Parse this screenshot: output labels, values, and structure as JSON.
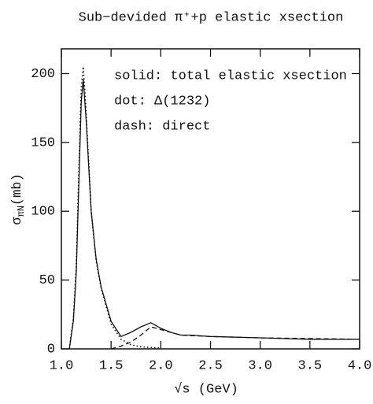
{
  "chart_data": {
    "type": "line",
    "title": "Sub−devided π⁺+p elastic xsection",
    "y_label": {
      "symbol": "σ",
      "subscript": "πN",
      "unit": "(mb)"
    },
    "x_label": "√s (GeV)",
    "annotations": [
      "solid: total elastic xsection",
      "dot: Δ(1232)",
      "dash: direct"
    ],
    "xlim": [
      1,
      4
    ],
    "ylim": [
      0,
      218
    ],
    "xticks": [
      {
        "value": 1,
        "label": "1.0"
      },
      1.5,
      {
        "value": 2,
        "label": "2.0"
      },
      2.5,
      {
        "value": 3,
        "label": "3.0"
      },
      3.5,
      {
        "value": 4,
        "label": "4.0"
      }
    ],
    "yticks": [
      0,
      50,
      100,
      150,
      200
    ],
    "series": [
      {
        "name": "solid",
        "style": "solid",
        "color": "#111111",
        "x": [
          1.08,
          1.12,
          1.15,
          1.18,
          1.2,
          1.22,
          1.25,
          1.3,
          1.35,
          1.4,
          1.5,
          1.6,
          1.7,
          1.8,
          1.9,
          2.0,
          2.1,
          2.2,
          2.3,
          2.5,
          3.0,
          3.5,
          4.0
        ],
        "values": [
          0,
          20,
          55,
          130,
          180,
          196,
          165,
          100,
          65,
          45,
          20,
          9,
          12,
          16,
          19,
          15,
          12,
          10,
          10,
          9,
          8,
          7,
          7
        ]
      },
      {
        "name": "dot",
        "style": "dot",
        "color": "#111111",
        "x": [
          1.08,
          1.12,
          1.15,
          1.18,
          1.2,
          1.22,
          1.25,
          1.3,
          1.35,
          1.4,
          1.5,
          1.6,
          1.7,
          1.8,
          2.0
        ],
        "values": [
          0,
          22,
          60,
          140,
          190,
          205,
          170,
          100,
          64,
          44,
          18,
          7,
          3,
          1.5,
          0.5
        ]
      },
      {
        "name": "dash",
        "style": "dash",
        "color": "#111111",
        "x": [
          1.5,
          1.6,
          1.7,
          1.8,
          1.9,
          2.0,
          2.2,
          2.5,
          3.0,
          4.0
        ],
        "values": [
          0,
          2,
          5,
          10,
          16,
          14,
          10,
          9,
          8,
          7
        ]
      }
    ]
  }
}
